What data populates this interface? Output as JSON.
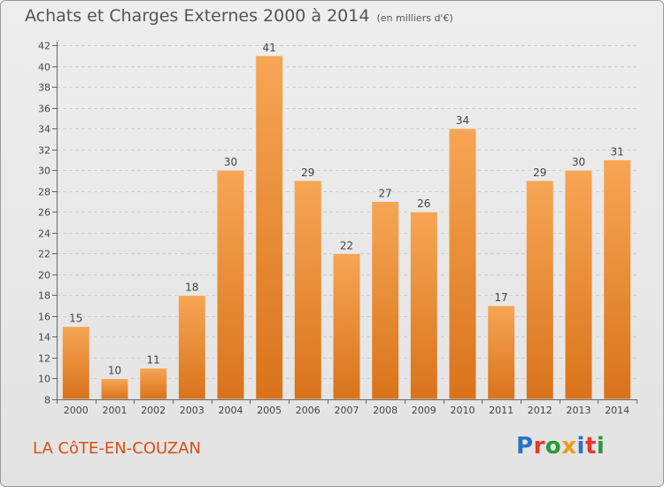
{
  "header": {
    "title": "Achats et Charges Externes 2000 à 2014",
    "unit_note": "(en milliers d'€)"
  },
  "place_name": "LA CôTE-EN-COUZAN",
  "logo": {
    "text": "Proxiti",
    "letter_colors": [
      "#2b73c8",
      "#e6372d",
      "#2a9a3a",
      "#f29a1e",
      "#2b73c8",
      "#e6372d",
      "#2a9a3a"
    ]
  },
  "colors": {
    "bar_top": "#f7a655",
    "bar_bottom": "#d9731a",
    "bar_stroke": "#e8e8e8",
    "grid": "#cfcfcf",
    "place": "#d94f16"
  },
  "chart_data": {
    "type": "bar",
    "categories": [
      "2000",
      "2001",
      "2002",
      "2003",
      "2004",
      "2005",
      "2006",
      "2007",
      "2008",
      "2009",
      "2010",
      "2011",
      "2012",
      "2013",
      "2014"
    ],
    "values": [
      15,
      10,
      11,
      18,
      30,
      41,
      29,
      22,
      27,
      26,
      34,
      17,
      29,
      30,
      31
    ],
    "title": "Achats et Charges Externes 2000 à 2014",
    "ylim": [
      8,
      42
    ],
    "yticks": [
      8,
      10,
      12,
      14,
      16,
      18,
      20,
      22,
      24,
      26,
      28,
      30,
      32,
      34,
      36,
      38,
      40,
      42
    ],
    "grid": true
  }
}
